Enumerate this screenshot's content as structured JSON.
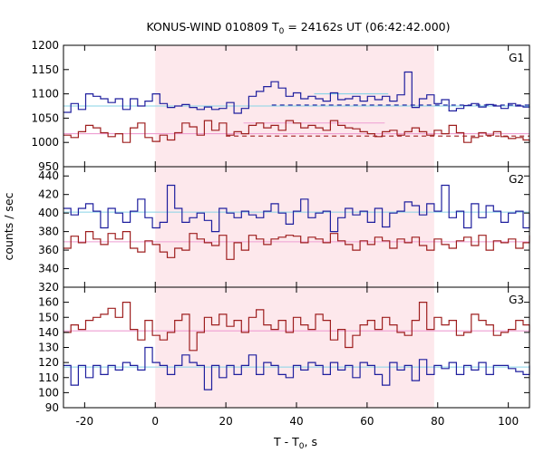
{
  "chart_data": {
    "type": "line",
    "title": {
      "main": "KONUS-WIND 010809 T",
      "sub": "0",
      "rest": " = 24162s UT (06:42:42.000)"
    },
    "xlabel": {
      "main": "T - T",
      "sub": "0",
      "rest": ", s"
    },
    "ylabel": "counts / sec",
    "xlim": [
      -26,
      106
    ],
    "xticks": [
      -20,
      0,
      20,
      40,
      60,
      80,
      100
    ],
    "step": 2.1,
    "highlight_interval": [
      0,
      79
    ],
    "colors": {
      "blue": "#1f1f9e",
      "red": "#9e1f1f",
      "cyan": "#87d3e6",
      "pink": "#ee9ed2",
      "highlight": "#fde8ec"
    },
    "panels": [
      {
        "label": "G1",
        "ylim": [
          950,
          1200
        ],
        "yticks": [
          950,
          1000,
          1050,
          1100,
          1150,
          1200
        ],
        "series": [
          {
            "color_key": "blue",
            "values": [
              1062,
              1080,
              1068,
              1100,
              1095,
              1090,
              1082,
              1090,
              1068,
              1090,
              1075,
              1085,
              1100,
              1080,
              1072,
              1075,
              1078,
              1072,
              1068,
              1073,
              1068,
              1070,
              1082,
              1060,
              1070,
              1095,
              1105,
              1115,
              1125,
              1112,
              1095,
              1102,
              1090,
              1095,
              1090,
              1085,
              1102,
              1088,
              1090,
              1095,
              1085,
              1095,
              1088,
              1095,
              1085,
              1098,
              1145,
              1072,
              1090,
              1098,
              1080,
              1088,
              1065,
              1070,
              1076,
              1080,
              1073,
              1078,
              1075,
              1070,
              1080,
              1075,
              1073,
              1072
            ]
          },
          {
            "color_key": "red",
            "values": [
              1015,
              1010,
              1022,
              1035,
              1030,
              1020,
              1012,
              1018,
              1000,
              1030,
              1040,
              1010,
              1002,
              1015,
              1005,
              1020,
              1040,
              1032,
              1015,
              1045,
              1025,
              1040,
              1015,
              1022,
              1018,
              1035,
              1040,
              1030,
              1035,
              1025,
              1045,
              1040,
              1030,
              1035,
              1030,
              1025,
              1045,
              1035,
              1030,
              1028,
              1022,
              1018,
              1012,
              1022,
              1025,
              1015,
              1022,
              1030,
              1022,
              1015,
              1025,
              1018,
              1035,
              1020,
              1000,
              1010,
              1020,
              1015,
              1022,
              1012,
              1008,
              1010,
              1005,
              1000
            ]
          }
        ],
        "ref_lines": [
          {
            "color_key": "cyan",
            "style": "solid",
            "x": [
              -26,
              106
            ],
            "y": 1075
          },
          {
            "color_key": "cyan",
            "style": "solid",
            "x": [
              45,
              66
            ],
            "y": 1100
          },
          {
            "color_key": "blue",
            "style": "dashed",
            "x": [
              33,
              106
            ],
            "y": 1077
          },
          {
            "color_key": "pink",
            "style": "solid",
            "x": [
              -26,
              106
            ],
            "y": 1018
          },
          {
            "color_key": "pink",
            "style": "solid",
            "x": [
              25,
              65
            ],
            "y": 1040
          },
          {
            "color_key": "red",
            "style": "dashed",
            "x": [
              20,
              106
            ],
            "y": 1013
          }
        ]
      },
      {
        "label": "G2",
        "ylim": [
          320,
          450
        ],
        "yticks": [
          320,
          340,
          360,
          380,
          400,
          420,
          440
        ],
        "series": [
          {
            "color_key": "blue",
            "values": [
              405,
              398,
              405,
              410,
              402,
              384,
              405,
              400,
              390,
              402,
              415,
              395,
              384,
              390,
              430,
              405,
              390,
              395,
              400,
              392,
              380,
              405,
              400,
              395,
              402,
              398,
              395,
              402,
              410,
              400,
              388,
              402,
              415,
              395,
              400,
              402,
              380,
              395,
              405,
              398,
              402,
              390,
              405,
              385,
              400,
              402,
              412,
              408,
              398,
              410,
              402,
              430,
              395,
              402,
              384,
              410,
              395,
              408,
              402,
              390,
              400,
              402,
              384,
              400
            ]
          },
          {
            "color_key": "red",
            "values": [
              362,
              375,
              368,
              380,
              372,
              366,
              378,
              372,
              380,
              362,
              358,
              370,
              366,
              358,
              352,
              362,
              360,
              378,
              372,
              368,
              365,
              376,
              350,
              368,
              360,
              376,
              372,
              366,
              372,
              374,
              376,
              375,
              368,
              374,
              372,
              368,
              378,
              370,
              366,
              360,
              370,
              366,
              374,
              370,
              362,
              372,
              368,
              374,
              365,
              360,
              372,
              366,
              362,
              370,
              374,
              365,
              376,
              360,
              370,
              368,
              372,
              362,
              368,
              376
            ]
          }
        ],
        "ref_lines": [
          {
            "color_key": "cyan",
            "style": "solid",
            "x": [
              -26,
              106
            ],
            "y": 401
          },
          {
            "color_key": "pink",
            "style": "solid",
            "x": [
              -26,
              106
            ],
            "y": 369
          }
        ]
      },
      {
        "label": "G3",
        "ylim": [
          90,
          170
        ],
        "yticks": [
          90,
          100,
          110,
          120,
          130,
          140,
          150,
          160
        ],
        "series": [
          {
            "color_key": "blue",
            "values": [
              118,
              105,
              118,
              110,
              118,
              112,
              118,
              115,
              120,
              118,
              115,
              130,
              120,
              118,
              112,
              118,
              125,
              120,
              118,
              102,
              118,
              110,
              118,
              112,
              118,
              125,
              112,
              120,
              118,
              112,
              110,
              118,
              115,
              120,
              118,
              112,
              120,
              115,
              118,
              110,
              120,
              118,
              112,
              105,
              120,
              115,
              118,
              108,
              122,
              112,
              118,
              116,
              120,
              112,
              118,
              115,
              120,
              112,
              118,
              118,
              116,
              114,
              112,
              118
            ]
          },
          {
            "color_key": "red",
            "values": [
              140,
              145,
              142,
              148,
              150,
              152,
              156,
              150,
              160,
              142,
              135,
              148,
              138,
              135,
              140,
              148,
              152,
              128,
              140,
              150,
              145,
              152,
              144,
              148,
              140,
              150,
              155,
              145,
              142,
              148,
              140,
              150,
              145,
              142,
              152,
              148,
              135,
              142,
              130,
              138,
              145,
              148,
              142,
              150,
              145,
              140,
              138,
              148,
              160,
              142,
              150,
              145,
              148,
              138,
              140,
              152,
              148,
              145,
              138,
              140,
              142,
              148,
              145,
              140
            ]
          }
        ],
        "ref_lines": [
          {
            "color_key": "cyan",
            "style": "solid",
            "x": [
              -26,
              106
            ],
            "y": 117
          },
          {
            "color_key": "pink",
            "style": "solid",
            "x": [
              -26,
              106
            ],
            "y": 141
          }
        ]
      }
    ]
  }
}
